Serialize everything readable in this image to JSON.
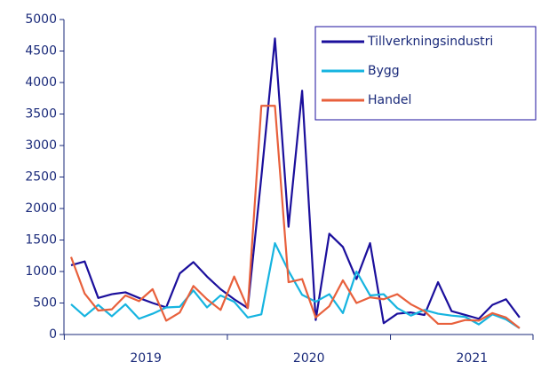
{
  "chart_data": {
    "type": "line",
    "categories": [
      null,
      null,
      null,
      null,
      null,
      null,
      null,
      null,
      null,
      null,
      null,
      null,
      null,
      null,
      null,
      null,
      null,
      null,
      null,
      null,
      null,
      null,
      null,
      null,
      null,
      null,
      null,
      null,
      null,
      null,
      null,
      null,
      null,
      null
    ],
    "year_labels": [
      "2019",
      "2020",
      "2021"
    ],
    "series": [
      {
        "name": "Tillverkningsindustri",
        "color": "#1b0f9c",
        "values": [
          1100,
          1160,
          580,
          640,
          670,
          580,
          500,
          430,
          970,
          1150,
          920,
          720,
          560,
          420,
          2500,
          4700,
          1710,
          3870,
          230,
          1600,
          1390,
          880,
          1450,
          180,
          330,
          350,
          310,
          830,
          370,
          310,
          250,
          470,
          560,
          270
        ]
      },
      {
        "name": "Bygg",
        "color": "#16b4e0",
        "values": [
          480,
          290,
          470,
          290,
          480,
          250,
          330,
          430,
          440,
          700,
          430,
          620,
          520,
          270,
          320,
          1450,
          1010,
          630,
          520,
          640,
          340,
          1000,
          620,
          640,
          420,
          300,
          390,
          330,
          300,
          280,
          160,
          320,
          240,
          100
        ]
      },
      {
        "name": "Handel",
        "color": "#e8603c",
        "values": [
          1230,
          650,
          380,
          400,
          620,
          530,
          720,
          220,
          350,
          770,
          560,
          390,
          920,
          420,
          3630,
          3630,
          830,
          880,
          270,
          450,
          860,
          500,
          590,
          560,
          640,
          480,
          370,
          170,
          170,
          230,
          220,
          340,
          270,
          100
        ]
      }
    ],
    "ylim": [
      0,
      5000
    ],
    "yticks": [
      0,
      500,
      1000,
      1500,
      2000,
      2500,
      3000,
      3500,
      4000,
      4500,
      5000
    ],
    "legend": "top-right",
    "grid": false
  }
}
